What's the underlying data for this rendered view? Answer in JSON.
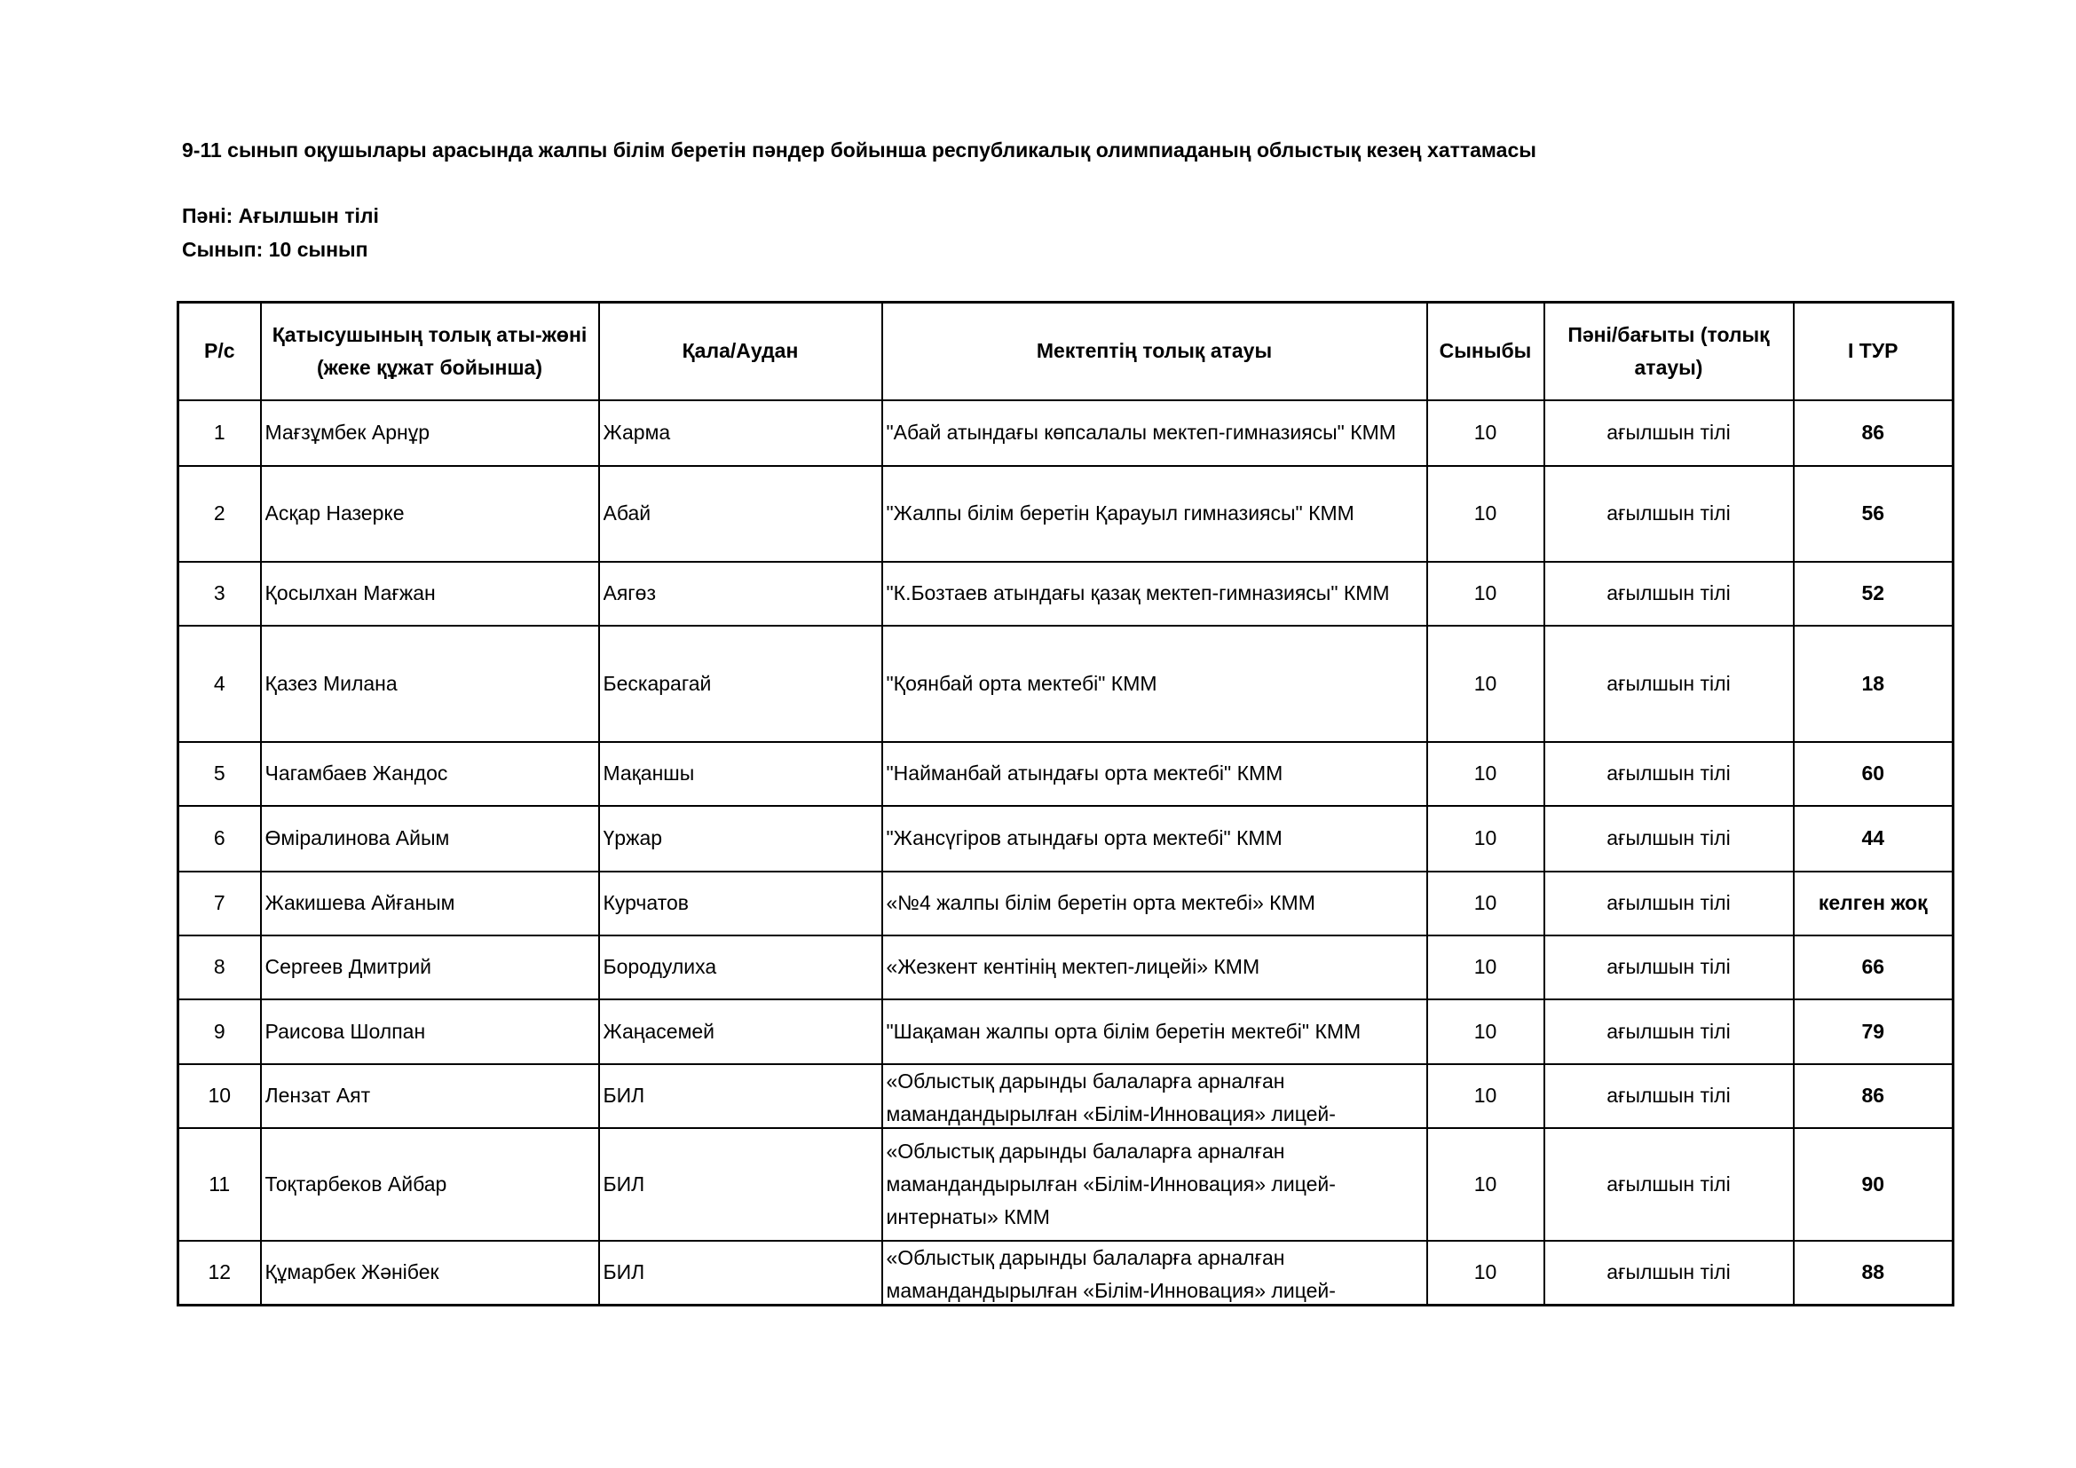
{
  "header": {
    "title": "9-11 сынып оқушылары арасында жалпы білім беретін пәндер бойынша республикалық олимпиаданың облыстық кезең хаттамасы",
    "subject": "Пәні: Ағылшын тілі",
    "grade": "Сынып: 10 сынып"
  },
  "table": {
    "columns": [
      "Р/с",
      "Қатысушының толық аты-жөні (жеке құжат бойынша)",
      "Қала/Аудан",
      "Мектептің толық атауы",
      "Сыныбы",
      "Пәні/бағыты (толық атауы)",
      "I ТУР"
    ],
    "rows": [
      [
        "1",
        "Мағзұмбек Арнұр",
        "Жарма",
        "\"Абай атындағы көпсалалы мектеп-гимназиясы\" КММ",
        "10",
        "ағылшын тілі",
        "86"
      ],
      [
        "2",
        "Асқар Назерке",
        "Абай",
        "\"Жалпы білім беретін Қарауыл гимназиясы\" КММ",
        "10",
        "ағылшын тілі",
        "56"
      ],
      [
        "3",
        "Қосылхан Мағжан",
        "Аягөз",
        "\"К.Бозтаев атындағы қазақ мектеп-гимназиясы\" КММ",
        "10",
        "ағылшын тілі",
        "52"
      ],
      [
        "4",
        "Қазез Милана",
        "Бескарагай",
        "\"Қоянбай орта мектебі\" КММ",
        "10",
        "ағылшын тілі",
        "18"
      ],
      [
        "5",
        "Чагамбаев Жандос",
        "Мақаншы",
        "\"Найманбай атындағы орта мектебі\" КММ",
        "10",
        "ағылшын тілі",
        "60"
      ],
      [
        "6",
        "Өміралинова Айым",
        "Үржар",
        "\"Жансүгіров атындағы орта мектебі\" КММ",
        "10",
        "ағылшын тілі",
        "44"
      ],
      [
        "7",
        "Жакишева Айғаным",
        "Курчатов",
        "«№4 жалпы білім беретін орта мектебі» КММ",
        "10",
        "ағылшын тілі",
        "келген жоқ"
      ],
      [
        "8",
        "Сергеев Дмитрий",
        "Бородулиха",
        "«Жезкент кентінің мектеп-лицейі» КММ",
        "10",
        "ағылшын тілі",
        "66"
      ],
      [
        "9",
        "Раисова Шолпан",
        "Жаңасемей",
        "\"Шақаман жалпы орта білім беретін мектебі\" КММ",
        "10",
        "ағылшын тілі",
        "79"
      ],
      [
        "10",
        "Лензат Аят",
        "БИЛ",
        "«Облыстық дарынды балаларға арналған мамандандырылған «Білім-Инновация» лицей-",
        "10",
        "ағылшын тілі",
        "86"
      ],
      [
        "11",
        "Тоқтарбеков Айбар",
        "БИЛ",
        "«Облыстық дарынды балаларға арналған мамандандырылған «Білім-Инновация» лицей-интернаты» КММ",
        "10",
        "ағылшын тілі",
        "90"
      ],
      [
        "12",
        "Құмарбек Жәнібек",
        "БИЛ",
        "«Облыстық дарынды балаларға арналған мамандандырылған «Білім-Инновация» лицей-",
        "10",
        "ағылшын тілі",
        "88"
      ]
    ]
  }
}
